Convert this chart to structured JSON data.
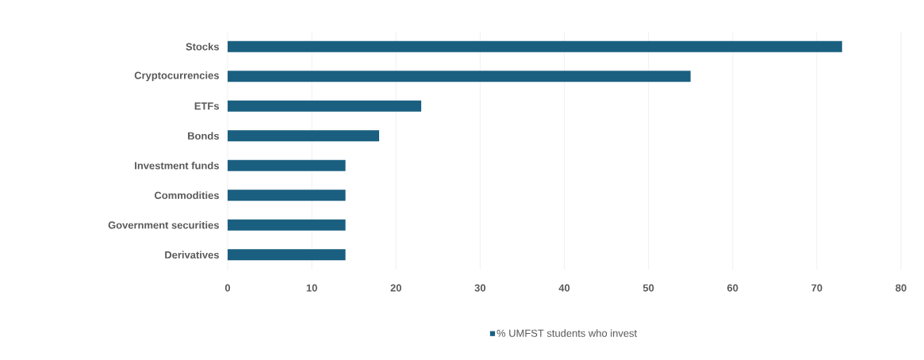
{
  "chart_data": {
    "type": "bar",
    "orientation": "horizontal",
    "categories": [
      "Stocks",
      "Cryptocurrencies",
      "ETFs",
      "Bonds",
      "Investment funds",
      "Commodities",
      "Government securities",
      "Derivatives"
    ],
    "series": [
      {
        "name": "% UMFST students who invest",
        "color": "#1a5f80",
        "values": [
          73,
          55,
          23,
          18,
          14,
          14,
          14,
          14
        ]
      }
    ],
    "xlim": [
      0,
      80
    ],
    "xticks": [
      0,
      10,
      20,
      30,
      40,
      50,
      60,
      70,
      80
    ],
    "grid": "x",
    "legend": "bottom"
  }
}
